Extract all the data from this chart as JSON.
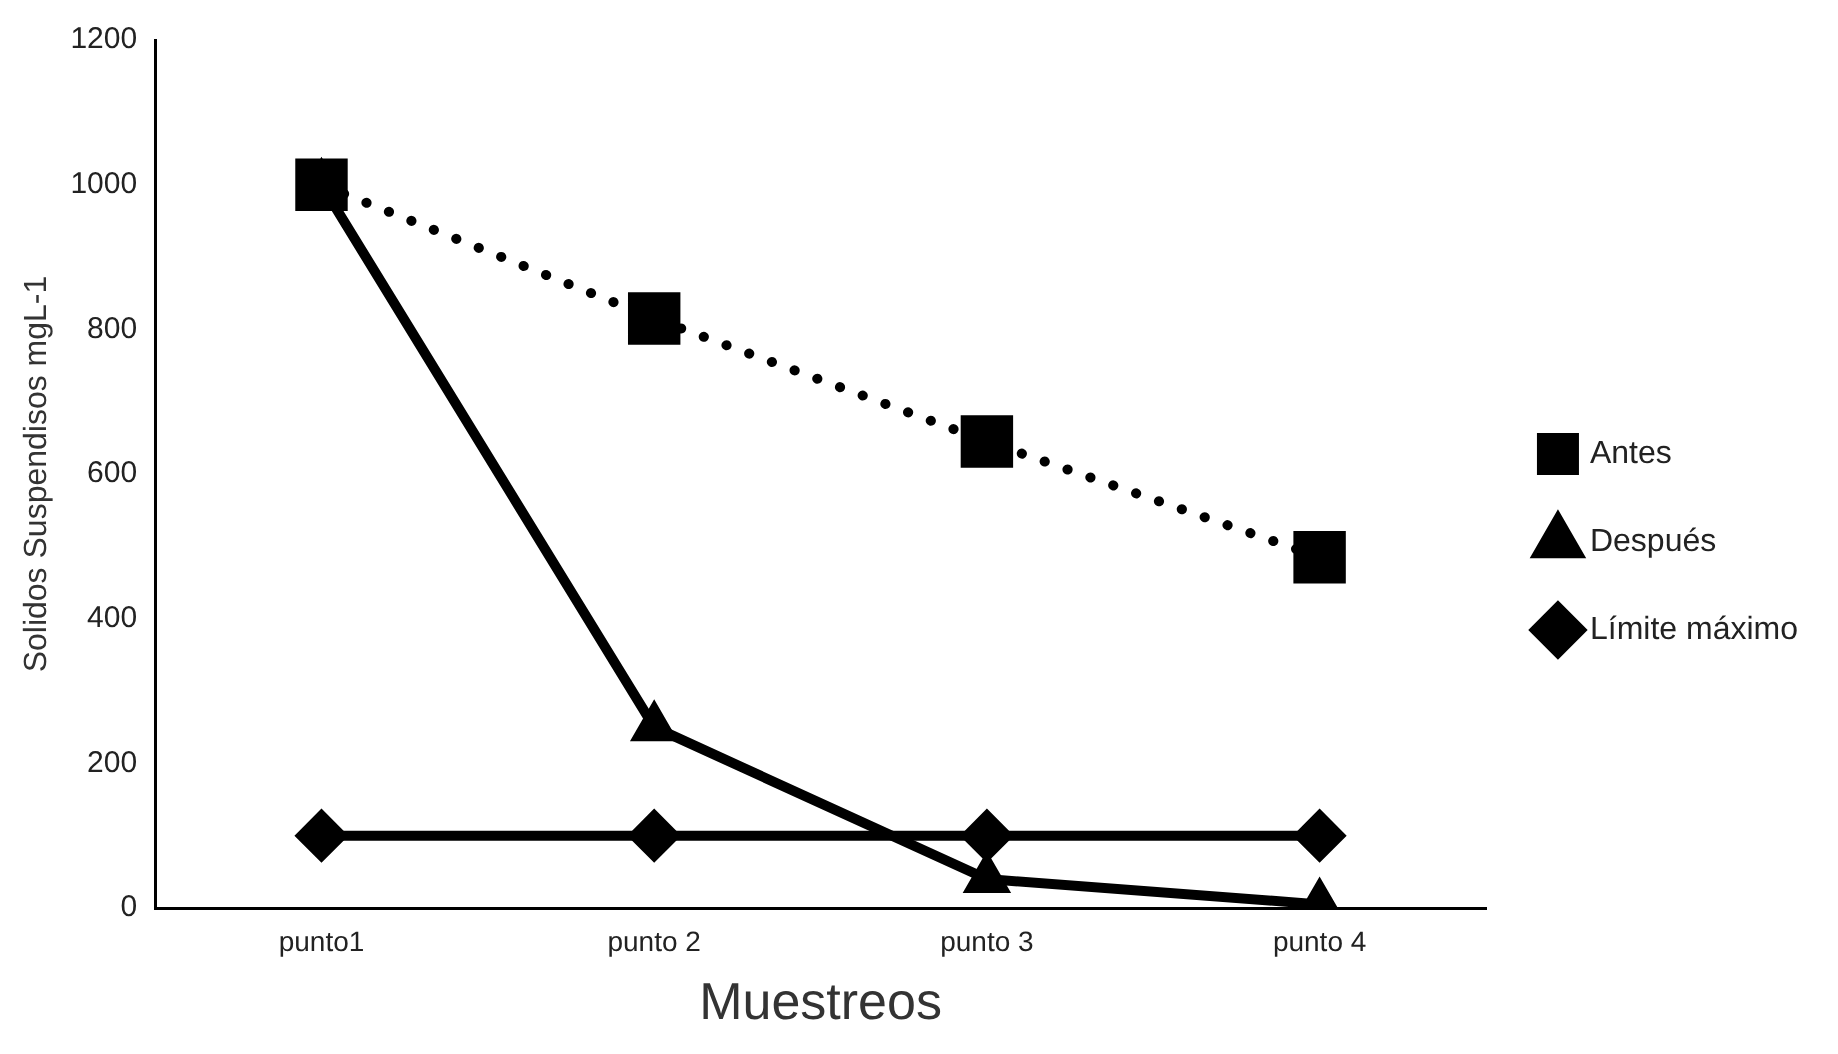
{
  "chart_data": {
    "type": "line",
    "xlabel": "Muestreos",
    "ylabel": "Solidos Suspendisos mgL-1",
    "categories": [
      "punto1",
      "punto 2",
      "punto 3",
      "punto 4"
    ],
    "series": [
      {
        "name": "Antes",
        "color": "#000000",
        "values": [
          1000,
          815,
          645,
          485
        ],
        "marker": "square",
        "line_style": "dotted"
      },
      {
        "name": "Después",
        "color": "#000000",
        "values": [
          1000,
          250,
          40,
          5
        ],
        "marker": "triangle",
        "line_style": "solid"
      },
      {
        "name": "Límite máximo",
        "color": "#000000",
        "values": [
          100,
          100,
          100,
          100
        ],
        "marker": "diamond",
        "line_style": "solid"
      }
    ],
    "ylim": [
      0,
      1200
    ],
    "yticks": [
      0,
      200,
      400,
      600,
      800,
      1000,
      1200
    ],
    "grid": false,
    "legend": "right"
  }
}
